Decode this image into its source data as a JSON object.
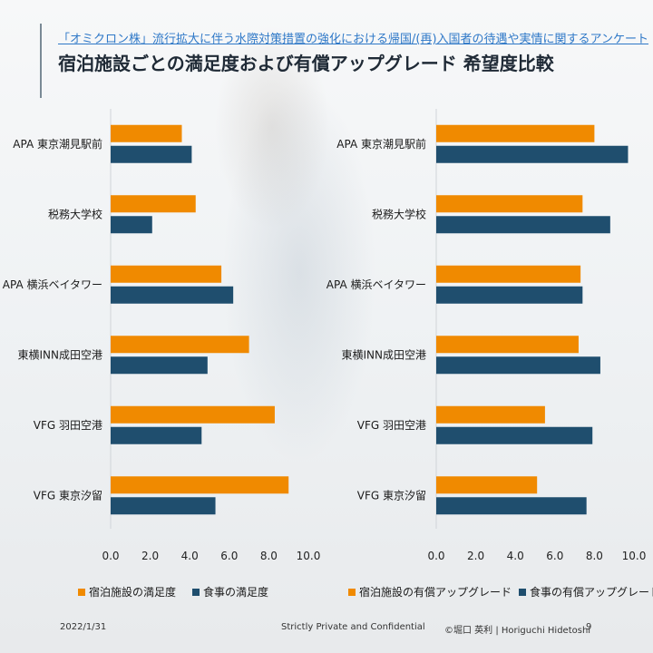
{
  "header": {
    "subtitle": "「オミクロン株」流行拡大に伴う水際対策措置の強化における帰国/(再)入国者の待遇や実情に関するアンケート",
    "title": "宿泊施設ごとの満足度および有償アップグレード 希望度比較"
  },
  "colors": {
    "orange": "#f08a00",
    "navy": "#1f4e6e"
  },
  "chart_data": [
    {
      "type": "bar",
      "orientation": "horizontal",
      "categories": [
        "APA 東京潮見駅前",
        "税務大学校",
        "APA 横浜ベイタワー",
        "東横INN成田空港",
        "VFG 羽田空港",
        "VFG 東京汐留"
      ],
      "series": [
        {
          "name": "宿泊施設の満足度",
          "color": "#f08a00",
          "values": [
            3.6,
            4.3,
            5.6,
            7.0,
            8.3,
            9.0
          ]
        },
        {
          "name": "食事の満足度",
          "color": "#1f4e6e",
          "values": [
            4.1,
            2.1,
            6.2,
            4.9,
            4.6,
            5.3
          ]
        }
      ],
      "xlim": [
        0,
        10
      ],
      "ticks": [
        "0.0",
        "2.0",
        "4.0",
        "6.0",
        "8.0",
        "10.0"
      ],
      "legend_position": "bottom"
    },
    {
      "type": "bar",
      "orientation": "horizontal",
      "categories": [
        "APA 東京潮見駅前",
        "税務大学校",
        "APA 横浜ベイタワー",
        "東横INN成田空港",
        "VFG 羽田空港",
        "VFG 東京汐留"
      ],
      "series": [
        {
          "name": "宿泊施設の有償アップグレード",
          "color": "#f08a00",
          "values": [
            8.0,
            7.4,
            7.3,
            7.2,
            5.5,
            5.1
          ]
        },
        {
          "name": "食事の有償アップグレード",
          "color": "#1f4e6e",
          "values": [
            9.7,
            8.8,
            7.4,
            8.3,
            7.9,
            7.6
          ]
        }
      ],
      "xlim": [
        0,
        10
      ],
      "ticks": [
        "0.0",
        "2.0",
        "4.0",
        "6.0",
        "8.0",
        "10.0"
      ],
      "legend_position": "bottom"
    }
  ],
  "footer": {
    "date": "2022/1/31",
    "confidential": "Strictly Private and Confidential",
    "author": "©堀口 英利 | Horiguchi Hidetoshi",
    "page": "9"
  }
}
